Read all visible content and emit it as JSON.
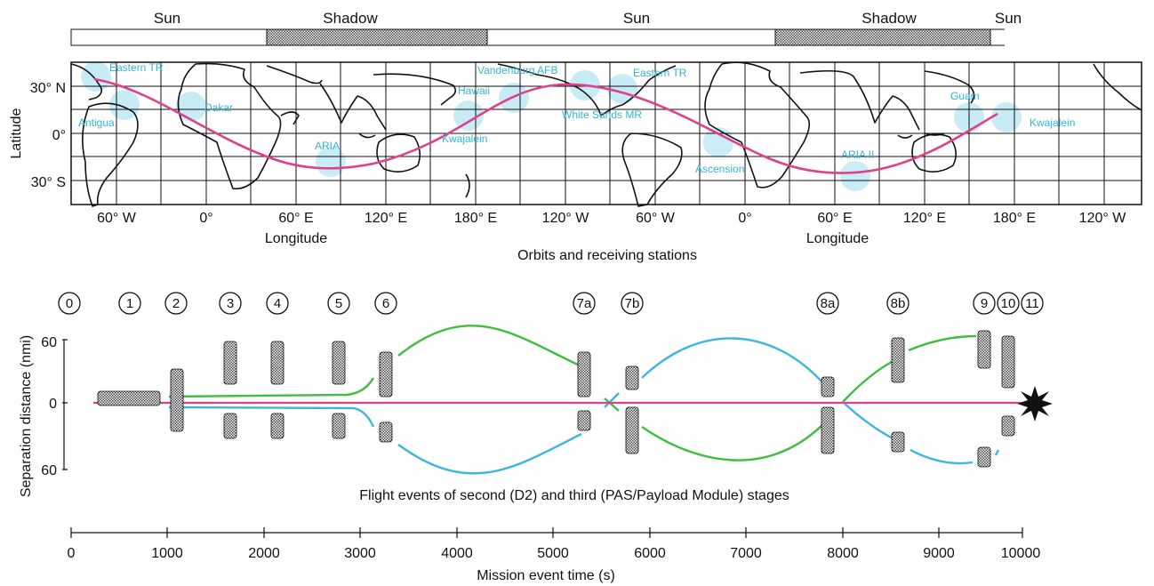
{
  "sun_shadow_bar": {
    "segments": [
      {
        "label": "Sun",
        "kind": "sun"
      },
      {
        "label": "Shadow",
        "kind": "shadow"
      },
      {
        "label": "Sun",
        "kind": "sun"
      },
      {
        "label": "Shadow",
        "kind": "shadow"
      },
      {
        "label": "Sun",
        "kind": "sun"
      }
    ]
  },
  "map": {
    "ylabel": "Latitude",
    "lat_ticks": [
      "30° N",
      "0°",
      "30° S"
    ],
    "lon_ticks": [
      "60° W",
      "0°",
      "60° E",
      "120° E",
      "180° E",
      "120° W",
      "60° W",
      "0°",
      "60° E",
      "120° E",
      "180° E",
      "120° W"
    ],
    "xlabel_left": "Longitude",
    "xlabel_right": "Longitude",
    "caption": "Orbits and receiving stations",
    "stations": [
      "Eastern TR",
      "Antigua",
      "Dakar",
      "ARIA",
      "Kwajalein",
      "Hawaii",
      "Vandenburg AFB",
      "White Sands MR",
      "Eastern TR",
      "Ascension",
      "ARIA II",
      "Guam",
      "Kwajalein"
    ],
    "colors": {
      "orbit": "#e0408a",
      "station": "#33b5d6",
      "coverage": "#bfe9f5"
    }
  },
  "events": {
    "markers": [
      "0",
      "1",
      "2",
      "3",
      "4",
      "5",
      "6",
      "7a",
      "7b",
      "8a",
      "8b",
      "9",
      "10",
      "11"
    ],
    "ylabel": "Separation distance (nmi)",
    "yticks": [
      "60",
      "0",
      "60"
    ],
    "caption": "Flight events of second (D2) and third (PAS/Payload Module) stages",
    "colors": {
      "green": "#3cbf3c",
      "blue": "#3bb6e0",
      "magenta": "#e0408a"
    }
  },
  "time_axis": {
    "ticks": [
      "0",
      "1000",
      "2000",
      "3000",
      "4000",
      "5000",
      "6000",
      "7000",
      "8000",
      "9000",
      "10000"
    ],
    "label": "Mission event time (s)"
  }
}
